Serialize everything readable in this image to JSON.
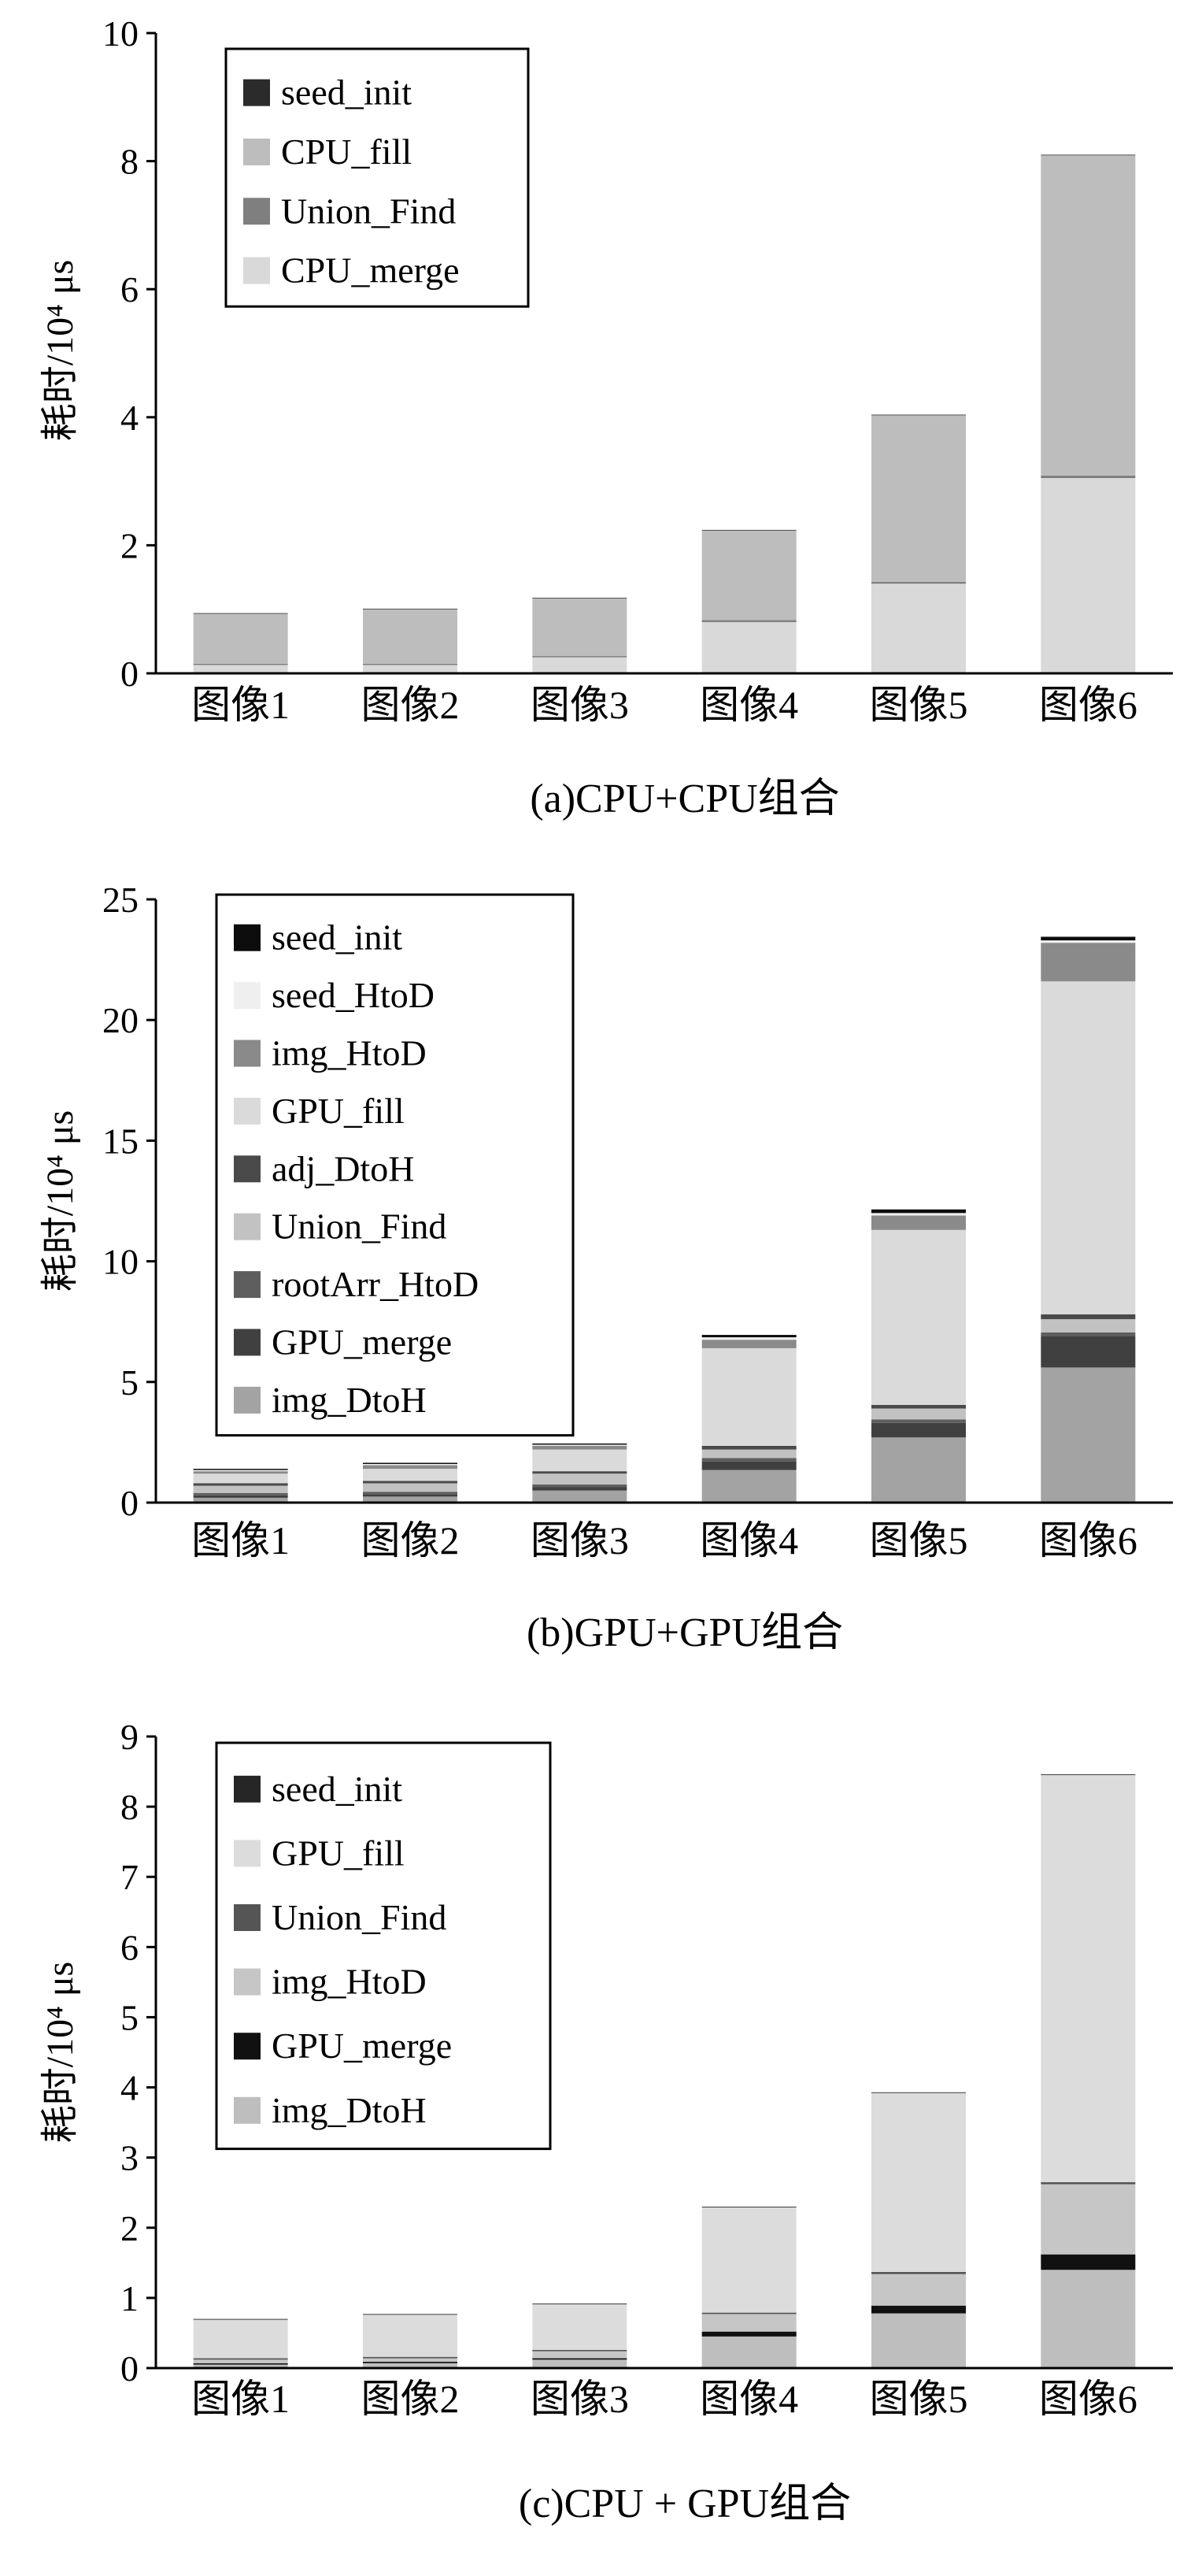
{
  "chart_data": [
    {
      "type": "bar",
      "stacked": true,
      "title": "(a)CPU+CPU组合",
      "ylabel": "耗时/10⁴ μs",
      "ylim": [
        0,
        10
      ],
      "yticks": [
        0,
        2,
        4,
        6,
        8,
        10
      ],
      "categories": [
        "图像1",
        "图像2",
        "图像3",
        "图像4",
        "图像5",
        "图像6"
      ],
      "legend_position": "top-left",
      "grid": false,
      "series": [
        {
          "name": "seed_init",
          "color": "#2b2b2b",
          "values": [
            0.01,
            0.01,
            0.01,
            0.01,
            0.01,
            0.01
          ]
        },
        {
          "name": "CPU_fill",
          "color": "#bdbdbd",
          "values": [
            0.78,
            0.85,
            0.9,
            1.4,
            2.6,
            5.0
          ]
        },
        {
          "name": "Union_Find",
          "color": "#7f7f7f",
          "values": [
            0.02,
            0.02,
            0.02,
            0.03,
            0.03,
            0.04
          ]
        },
        {
          "name": "CPU_merge",
          "color": "#d9d9d9",
          "values": [
            0.13,
            0.13,
            0.25,
            0.8,
            1.4,
            3.05
          ]
        }
      ]
    },
    {
      "type": "bar",
      "stacked": true,
      "title": "(b)GPU+GPU组合",
      "ylabel": "耗时/10⁴ μs",
      "ylim": [
        0,
        25
      ],
      "yticks": [
        0,
        5,
        10,
        15,
        20,
        25
      ],
      "categories": [
        "图像1",
        "图像2",
        "图像3",
        "图像4",
        "图像5",
        "图像6"
      ],
      "legend_position": "top-left",
      "grid": false,
      "series": [
        {
          "name": "seed_init",
          "color": "#0d0d0d",
          "values": [
            0.05,
            0.05,
            0.05,
            0.1,
            0.15,
            0.15
          ]
        },
        {
          "name": "seed_HtoD",
          "color": "#efefef",
          "values": [
            0.05,
            0.05,
            0.05,
            0.1,
            0.1,
            0.1
          ]
        },
        {
          "name": "img_HtoD",
          "color": "#8a8a8a",
          "values": [
            0.1,
            0.15,
            0.15,
            0.35,
            0.6,
            1.6
          ]
        },
        {
          "name": "GPU_fill",
          "color": "#dadada",
          "values": [
            0.4,
            0.5,
            0.9,
            4.05,
            7.25,
            13.8
          ]
        },
        {
          "name": "adj_DtoH",
          "color": "#4a4a4a",
          "values": [
            0.1,
            0.1,
            0.1,
            0.15,
            0.15,
            0.2
          ]
        },
        {
          "name": "Union_Find",
          "color": "#c2c2c2",
          "values": [
            0.3,
            0.35,
            0.45,
            0.35,
            0.45,
            0.55
          ]
        },
        {
          "name": "rootArr_HtoD",
          "color": "#5e5e5e",
          "values": [
            0.1,
            0.1,
            0.1,
            0.15,
            0.15,
            0.15
          ]
        },
        {
          "name": "GPU_merge",
          "color": "#404040",
          "values": [
            0.1,
            0.1,
            0.15,
            0.35,
            0.6,
            1.3
          ]
        },
        {
          "name": "img_DtoH",
          "color": "#a3a3a3",
          "values": [
            0.2,
            0.25,
            0.5,
            1.35,
            2.7,
            5.6
          ]
        }
      ]
    },
    {
      "type": "bar",
      "stacked": true,
      "title": "(c)CPU + GPU组合",
      "ylabel": "耗时/10⁴ μs",
      "ylim": [
        0,
        9
      ],
      "yticks": [
        0,
        1,
        2,
        3,
        4,
        5,
        6,
        7,
        8,
        9
      ],
      "categories": [
        "图像1",
        "图像2",
        "图像3",
        "图像4",
        "图像5",
        "图像6"
      ],
      "legend_position": "top-left",
      "grid": false,
      "series": [
        {
          "name": "seed_init",
          "color": "#262626",
          "values": [
            0.01,
            0.01,
            0.01,
            0.01,
            0.01,
            0.01
          ]
        },
        {
          "name": "GPU_fill",
          "color": "#dcdcdc",
          "values": [
            0.55,
            0.6,
            0.65,
            1.5,
            2.55,
            5.8
          ]
        },
        {
          "name": "Union_Find",
          "color": "#555555",
          "values": [
            0.02,
            0.02,
            0.02,
            0.02,
            0.03,
            0.03
          ]
        },
        {
          "name": "img_HtoD",
          "color": "#c6c6c6",
          "values": [
            0.05,
            0.05,
            0.1,
            0.25,
            0.45,
            1.0
          ]
        },
        {
          "name": "GPU_merge",
          "color": "#111111",
          "values": [
            0.02,
            0.02,
            0.02,
            0.07,
            0.11,
            0.22
          ]
        },
        {
          "name": "img_DtoH",
          "color": "#bebebe",
          "values": [
            0.05,
            0.07,
            0.12,
            0.45,
            0.78,
            1.4
          ]
        }
      ]
    }
  ]
}
